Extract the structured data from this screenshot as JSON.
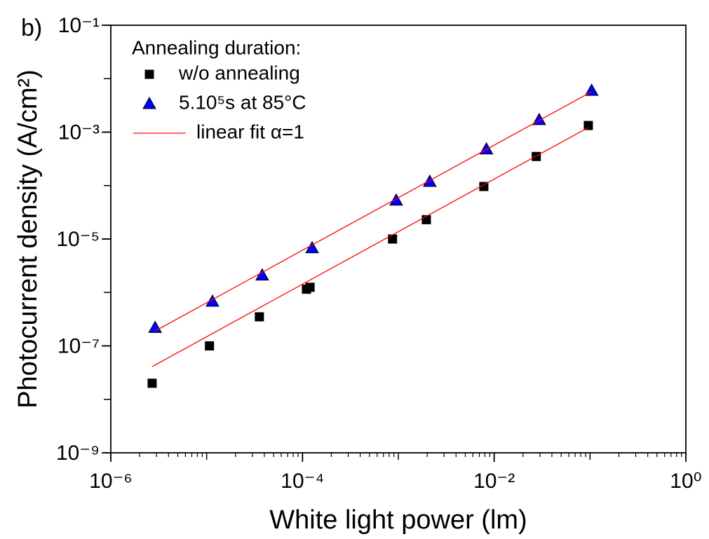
{
  "chart_data": {
    "type": "scatter",
    "annotation": "b)",
    "xlabel": "White light power (lm)",
    "ylabel": "Photocurrent density (A/cm²)",
    "xscale": "log",
    "yscale": "log",
    "xlim": [
      1e-06,
      1
    ],
    "ylim": [
      1e-09,
      0.1
    ],
    "xticks": [
      {
        "value": 1e-06,
        "label": "10⁻⁶"
      },
      {
        "value": 0.0001,
        "label": "10⁻⁴"
      },
      {
        "value": 0.01,
        "label": "10⁻²"
      },
      {
        "value": 1,
        "label": "10⁰"
      }
    ],
    "yticks": [
      {
        "value": 1e-09,
        "label": "10⁻⁹"
      },
      {
        "value": 1e-07,
        "label": "10⁻⁷"
      },
      {
        "value": 1e-05,
        "label": "10⁻⁵"
      },
      {
        "value": 0.001,
        "label": "10⁻³"
      },
      {
        "value": 0.1,
        "label": "10⁻¹"
      }
    ],
    "legend_title": "Annealing duration:",
    "legend_loc": "upper left",
    "series": [
      {
        "name": "w/o annealing",
        "kind": "scatter",
        "marker": "square",
        "color": "#000000",
        "x": [
          2.7e-06,
          1.07e-05,
          3.55e-05,
          0.00011,
          0.00012,
          0.00087,
          0.00196,
          0.0078,
          0.0275,
          0.096
        ],
        "values": [
          2e-08,
          1e-07,
          3.5e-07,
          1.15e-06,
          1.25e-06,
          1e-05,
          2.3e-05,
          9.6e-05,
          0.00035,
          0.00133
        ]
      },
      {
        "name": "5.10⁵s at 85°C",
        "kind": "scatter",
        "marker": "triangle",
        "color": "#0000ff",
        "x": [
          2.9e-06,
          1.15e-05,
          3.8e-05,
          0.000126,
          0.00095,
          0.00213,
          0.0083,
          0.0295,
          0.104
        ],
        "values": [
          2.2e-07,
          6.8e-07,
          2.1e-06,
          6.8e-06,
          5.3e-05,
          0.000119,
          0.00048,
          0.0017,
          0.006
        ]
      },
      {
        "name": "linear fit α=1",
        "kind": "line",
        "color": "#ff0000",
        "x": [
          2.9e-06,
          0.104,
          null,
          2.7e-06,
          0.096
        ],
        "values": [
          1.9e-07,
          0.0057,
          null,
          4.1e-08,
          0.00122
        ]
      }
    ]
  }
}
